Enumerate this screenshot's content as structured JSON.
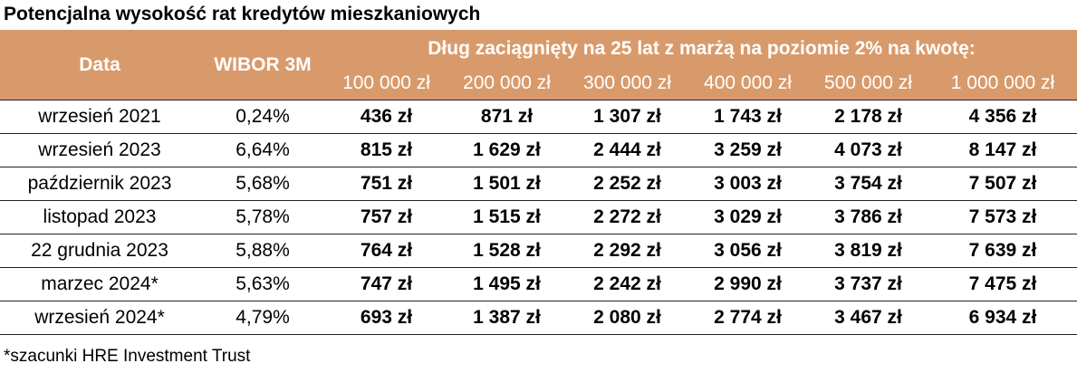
{
  "title": "Potencjalna wysokość rat kredytów mieszkaniowych",
  "table": {
    "header": {
      "date": "Data",
      "wibor": "WIBOR 3M",
      "group": "Dług zaciągnięty na 25 lat z marżą na poziomie 2% na kwotę:",
      "amounts": [
        "100 000 zł",
        "200 000 zł",
        "300 000 zł",
        "400 000 zł",
        "500 000 zł",
        "1 000 000 zł"
      ]
    },
    "rows": [
      [
        "wrzesień 2021",
        "0,24%",
        "436 zł",
        "871 zł",
        "1 307 zł",
        "1 743 zł",
        "2 178 zł",
        "4 356 zł"
      ],
      [
        "wrzesień 2023",
        "6,64%",
        "815 zł",
        "1 629 zł",
        "2 444 zł",
        "3 259 zł",
        "4 073 zł",
        "8 147 zł"
      ],
      [
        "październik 2023",
        "5,68%",
        "751 zł",
        "1 501 zł",
        "2 252 zł",
        "3 003 zł",
        "3 754 zł",
        "7 507 zł"
      ],
      [
        "listopad 2023",
        "5,78%",
        "757 zł",
        "1 515 zł",
        "2 272 zł",
        "3 029 zł",
        "3 786 zł",
        "7 573 zł"
      ],
      [
        "22 grudnia 2023",
        "5,88%",
        "764 zł",
        "1 528 zł",
        "2 292 zł",
        "3 056 zł",
        "3 819 zł",
        "7 639 zł"
      ],
      [
        "marzec 2024*",
        "5,63%",
        "747 zł",
        "1 495 zł",
        "2 242 zł",
        "2 990 zł",
        "3 737 zł",
        "7 475 zł"
      ],
      [
        "wrzesień 2024*",
        "4,79%",
        "693 zł",
        "1 387 zł",
        "2 080 zł",
        "2 774 zł",
        "3 467 zł",
        "6 934 zł"
      ]
    ]
  },
  "footnote": "*szacunki HRE Investment Trust"
}
